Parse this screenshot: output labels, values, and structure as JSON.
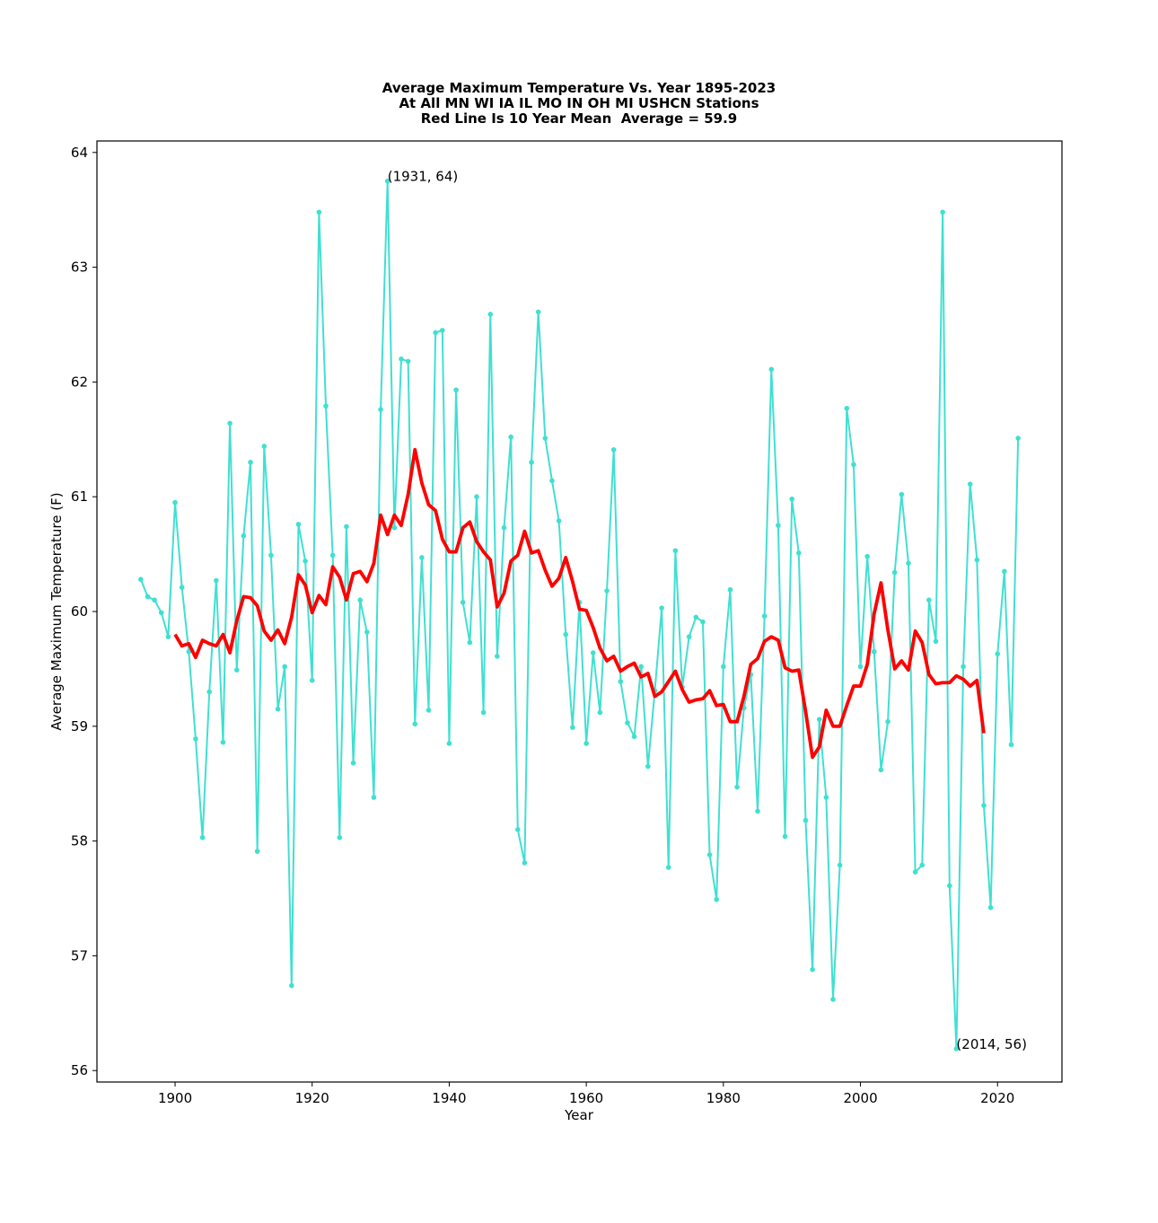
{
  "chart_data": {
    "type": "line",
    "title_lines": [
      "Average Maximum Temperature Vs. Year 1895-2023",
      "At All MN WI IA IL MO IN OH MI USHCN Stations",
      "Red Line Is 10 Year Mean  Average = 59.9"
    ],
    "xlabel": "Year",
    "ylabel": "Average Maximum Temperature (F)",
    "xlim": [
      1888.6,
      2029.4
    ],
    "ylim": [
      55.9,
      64.1
    ],
    "xticks": [
      1900,
      1920,
      1940,
      1960,
      1980,
      2000,
      2020
    ],
    "yticks": [
      56,
      57,
      58,
      59,
      60,
      61,
      62,
      63,
      64
    ],
    "grid": false,
    "colors": {
      "annual": "#40e0d0",
      "mean": "#ff0000"
    },
    "annotations": [
      {
        "text": "(1931, 64)",
        "x": 1931,
        "y": 63.75
      },
      {
        "text": "(2014, 56)",
        "x": 2014,
        "y": 56.19
      }
    ],
    "series": [
      {
        "name": "Annual Average Maximum Temperature",
        "x_start": 1895,
        "values": [
          60.28,
          60.13,
          60.1,
          59.99,
          59.78,
          60.95,
          60.21,
          59.65,
          58.89,
          58.03,
          59.3,
          60.27,
          58.86,
          61.64,
          59.49,
          60.66,
          61.3,
          57.91,
          61.44,
          60.49,
          59.15,
          59.52,
          56.74,
          60.76,
          60.44,
          59.4,
          63.48,
          61.79,
          60.49,
          58.03,
          60.74,
          58.68,
          60.1,
          59.82,
          58.38,
          61.76,
          63.75,
          60.73,
          62.2,
          62.18,
          59.02,
          60.47,
          59.14,
          62.43,
          62.45,
          58.85,
          61.93,
          60.08,
          59.73,
          61.0,
          59.12,
          62.59,
          59.61,
          60.73,
          61.52,
          58.1,
          57.81,
          61.3,
          62.61,
          61.51,
          61.14,
          60.79,
          59.8,
          58.99,
          60.08,
          58.85,
          59.64,
          59.12,
          60.18,
          61.41,
          59.39,
          59.03,
          58.91,
          59.52,
          58.65,
          59.31,
          60.03,
          57.77,
          60.53,
          59.34,
          59.78,
          59.95,
          59.91,
          57.88,
          57.49,
          59.52,
          60.19,
          58.47,
          59.16,
          59.45,
          58.26,
          59.96,
          62.11,
          60.75,
          58.04,
          60.98,
          60.51,
          58.18,
          56.88,
          59.06,
          58.38,
          56.62,
          57.79,
          61.77,
          61.28,
          59.52,
          60.48,
          59.65,
          58.62,
          59.04,
          60.34,
          61.02,
          60.42,
          57.73,
          57.79,
          60.1,
          59.74,
          63.48,
          57.61,
          56.19,
          59.52,
          61.11,
          60.45,
          58.31,
          57.42,
          59.63,
          60.35,
          58.84,
          61.51
        ]
      },
      {
        "name": "10 Year Mean",
        "x_start": 1900,
        "values": [
          59.8,
          59.7,
          59.72,
          59.6,
          59.75,
          59.72,
          59.7,
          59.8,
          59.64,
          59.92,
          60.13,
          60.12,
          60.05,
          59.83,
          59.75,
          59.84,
          59.72,
          59.95,
          60.32,
          60.23,
          59.99,
          60.14,
          60.06,
          60.39,
          60.3,
          60.1,
          60.33,
          60.35,
          60.26,
          60.42,
          60.84,
          60.67,
          60.84,
          60.75,
          61.02,
          61.41,
          61.12,
          60.93,
          60.88,
          60.63,
          60.52,
          60.52,
          60.73,
          60.78,
          60.61,
          60.52,
          60.45,
          60.04,
          60.16,
          60.44,
          60.49,
          60.7,
          60.51,
          60.53,
          60.36,
          60.22,
          60.29,
          60.47,
          60.26,
          60.02,
          60.01,
          59.86,
          59.68,
          59.57,
          59.61,
          59.48,
          59.52,
          59.55,
          59.43,
          59.46,
          59.26,
          59.3,
          59.39,
          59.48,
          59.32,
          59.21,
          59.23,
          59.24,
          59.31,
          59.18,
          59.19,
          59.04,
          59.04,
          59.26,
          59.54,
          59.59,
          59.74,
          59.78,
          59.75,
          59.51,
          59.48,
          59.49,
          59.13,
          58.73,
          58.82,
          59.14,
          59.0,
          59.0,
          59.18,
          59.35,
          59.35,
          59.54,
          59.98,
          60.25,
          59.84,
          59.5,
          59.57,
          59.49,
          59.83,
          59.73,
          59.45,
          59.37,
          59.38,
          59.38,
          59.44,
          59.41,
          59.35,
          59.4,
          58.94
        ]
      }
    ]
  }
}
